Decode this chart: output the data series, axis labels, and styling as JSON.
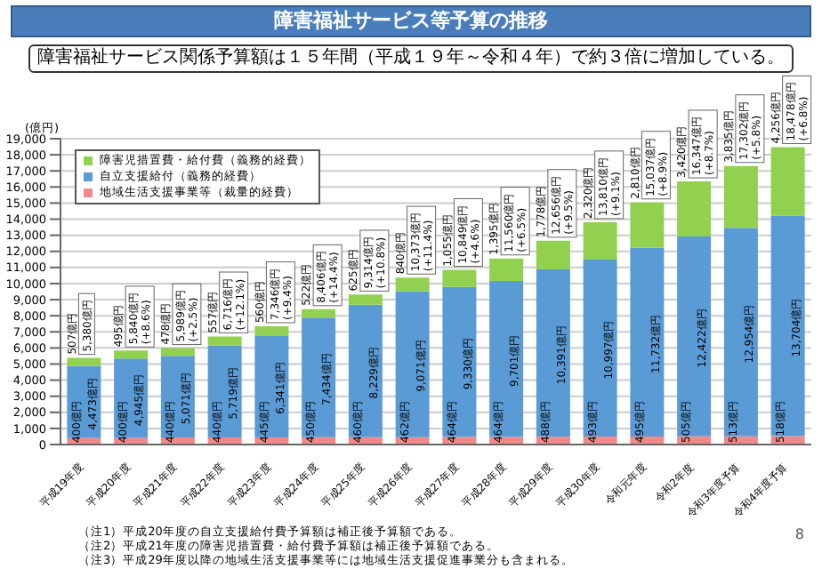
{
  "chart_data": {
    "type": "bar",
    "stacked": true,
    "title": "障害福祉サービス等予算の推移",
    "subtitle": "障害福祉サービス関係予算額は１５年間（平成１９年～令和４年）で約３倍に増加している。",
    "ylabel": "(億円)",
    "categories": [
      "平成19年度",
      "平成20年度",
      "平成21年度",
      "平成22年度",
      "平成23年度",
      "平成24年度",
      "平成25年度",
      "平成26年度",
      "平成27年度",
      "平成28年度",
      "平成29年度",
      "平成30年度",
      "令和元年度",
      "令和2年度",
      "令和3年度予算",
      "令和4年度予算"
    ],
    "series": [
      {
        "name": "地域生活支援事業等（裁量的経費）",
        "color": "#f08a8a",
        "values": [
          400,
          400,
          440,
          440,
          445,
          450,
          460,
          462,
          464,
          464,
          488,
          493,
          495,
          505,
          513,
          518
        ],
        "value_labels": [
          "400億円",
          "400億円",
          "440億円",
          "440億円",
          "445億円",
          "450億円",
          "460億円",
          "462億円",
          "464億円",
          "464億円",
          "488億円",
          "493億円",
          "495億円",
          "505億円",
          "513億円",
          "518億円"
        ]
      },
      {
        "name": "自立支援給付（義務的経費）",
        "color": "#5b9bd5",
        "values": [
          4473,
          4945,
          5071,
          5719,
          6341,
          7434,
          8229,
          9071,
          9330,
          9701,
          10391,
          10997,
          11732,
          12422,
          12954,
          13704
        ],
        "value_labels": [
          "4,473億円",
          "4,945億円",
          "5,071億円",
          "5,719億円",
          "6,341億円",
          "7,434億円",
          "8,229億円",
          "9,071億円",
          "9,330億円",
          "9,701億円",
          "10,391億円",
          "10,997億円",
          "11,732億円",
          "12,422億円",
          "12,954億円",
          "13,704億円"
        ]
      },
      {
        "name": "障害児措置費・給付費（義務的経費）",
        "color": "#92d050",
        "values": [
          507,
          495,
          478,
          557,
          560,
          522,
          625,
          840,
          1055,
          1395,
          1778,
          2320,
          2810,
          3420,
          3835,
          4256
        ],
        "value_labels": [
          "507億円",
          "495億円",
          "478億円",
          "557億円",
          "560億円",
          "522億円",
          "625億円",
          "840億円",
          "1,055億円",
          "1,395億円",
          "1,778億円",
          "2,320億円",
          "2,810億円",
          "3,420億円",
          "3,835億円",
          "4,256億円"
        ]
      }
    ],
    "totals": [
      "5,380億円",
      "5,840億円\n(+8.6%)",
      "5,989億円\n(+2.5%)",
      "6,716億円\n(+12.1%)",
      "7,346億円\n(+9.4%)",
      "8,406億円\n(+14.4%)",
      "9,314億円\n(+10.8%)",
      "10,373億円\n(+11.4%)",
      "10,849億円\n(+4.6%)",
      "11,560億円\n(+6.5%)",
      "12,656億円\n(+9.5%)",
      "13,810億円\n(+9.1%)",
      "15,037億円\n(+8.9%)",
      "16,347億円\n(+8.7%)",
      "17,302億円\n(+5.8%)",
      "18,478億円\n(+6.8%)"
    ],
    "ylim": [
      0,
      19000
    ],
    "yticks": [
      0,
      {
        "value": 1000,
        "label": "1,000"
      },
      {
        "value": 2000,
        "label": "2,000"
      },
      {
        "value": 3000,
        "label": "3,000"
      },
      {
        "value": 4000,
        "label": "4,000"
      },
      {
        "value": 5000,
        "label": "5,000"
      },
      {
        "value": 6000,
        "label": "6,000"
      },
      {
        "value": 7000,
        "label": "7,000"
      },
      {
        "value": 8000,
        "label": "8,000"
      },
      {
        "value": 9000,
        "label": "9,000"
      },
      {
        "value": 10000,
        "label": "10,000"
      },
      {
        "value": 11000,
        "label": "11,000"
      },
      {
        "value": 12000,
        "label": "12,000"
      },
      {
        "value": 13000,
        "label": "13,000"
      },
      {
        "value": 14000,
        "label": "14,000"
      },
      {
        "value": 15000,
        "label": "15,000"
      },
      {
        "value": 16000,
        "label": "16,000"
      },
      {
        "value": 17000,
        "label": "17,000"
      },
      {
        "value": 18000,
        "label": "18,000"
      },
      {
        "value": 19000,
        "label": "19,000"
      }
    ],
    "grid": "y",
    "legend": "top left",
    "annotations": [
      "（注1）平成20年度の自立支援給付費予算額は補正後予算額である。",
      "（注2）平成21年度の障害児措置費・給付費予算額は補正後予算額である。",
      "（注3）平成29年度以降の地域生活支援事業等には地域生活支援促進事業分も含まれる。",
      "8"
    ]
  }
}
